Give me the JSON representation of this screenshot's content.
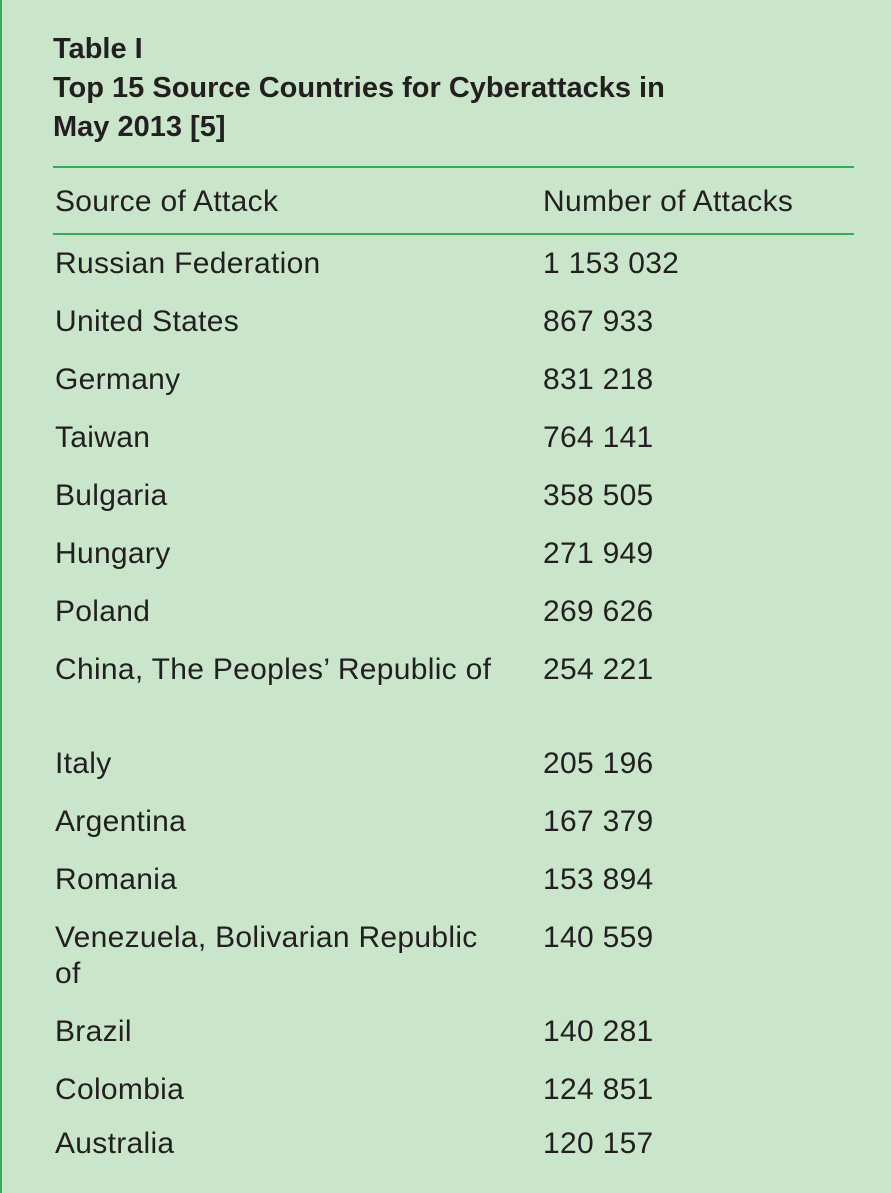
{
  "caption": {
    "label": "Table I",
    "title_line1": "Top 15 Source Countries for Cyberattacks in",
    "title_line2": "May 2013 [5]"
  },
  "columns": {
    "source": "Source of Attack",
    "number": "Number of Attacks"
  },
  "rows": [
    {
      "country": "Russian Federation",
      "count": "1 153 032"
    },
    {
      "country": "United States",
      "count": "867 933"
    },
    {
      "country": "Germany",
      "count": "831 218"
    },
    {
      "country": "Taiwan",
      "count": "764 141"
    },
    {
      "country": "Bulgaria",
      "count": "358 505"
    },
    {
      "country": "Hungary",
      "count": "271 949"
    },
    {
      "country": "Poland",
      "count": "269 626"
    },
    {
      "country": "China, The Peoples’ Republic of",
      "count": "254 221"
    },
    {
      "country": "Italy",
      "count": "205 196"
    },
    {
      "country": "Argentina",
      "count": "167 379"
    },
    {
      "country": "Romania",
      "count": "153 894"
    },
    {
      "country": "Venezuela, Bolivarian Republic of",
      "count": "140 559"
    },
    {
      "country": "Brazil",
      "count": "140 281"
    },
    {
      "country": "Colombia",
      "count": "124 851"
    },
    {
      "country": "Australia",
      "count": "120 157"
    }
  ],
  "colors": {
    "background": "#c9e5ca",
    "rule": "#2fae5c",
    "text": "#231f20"
  }
}
